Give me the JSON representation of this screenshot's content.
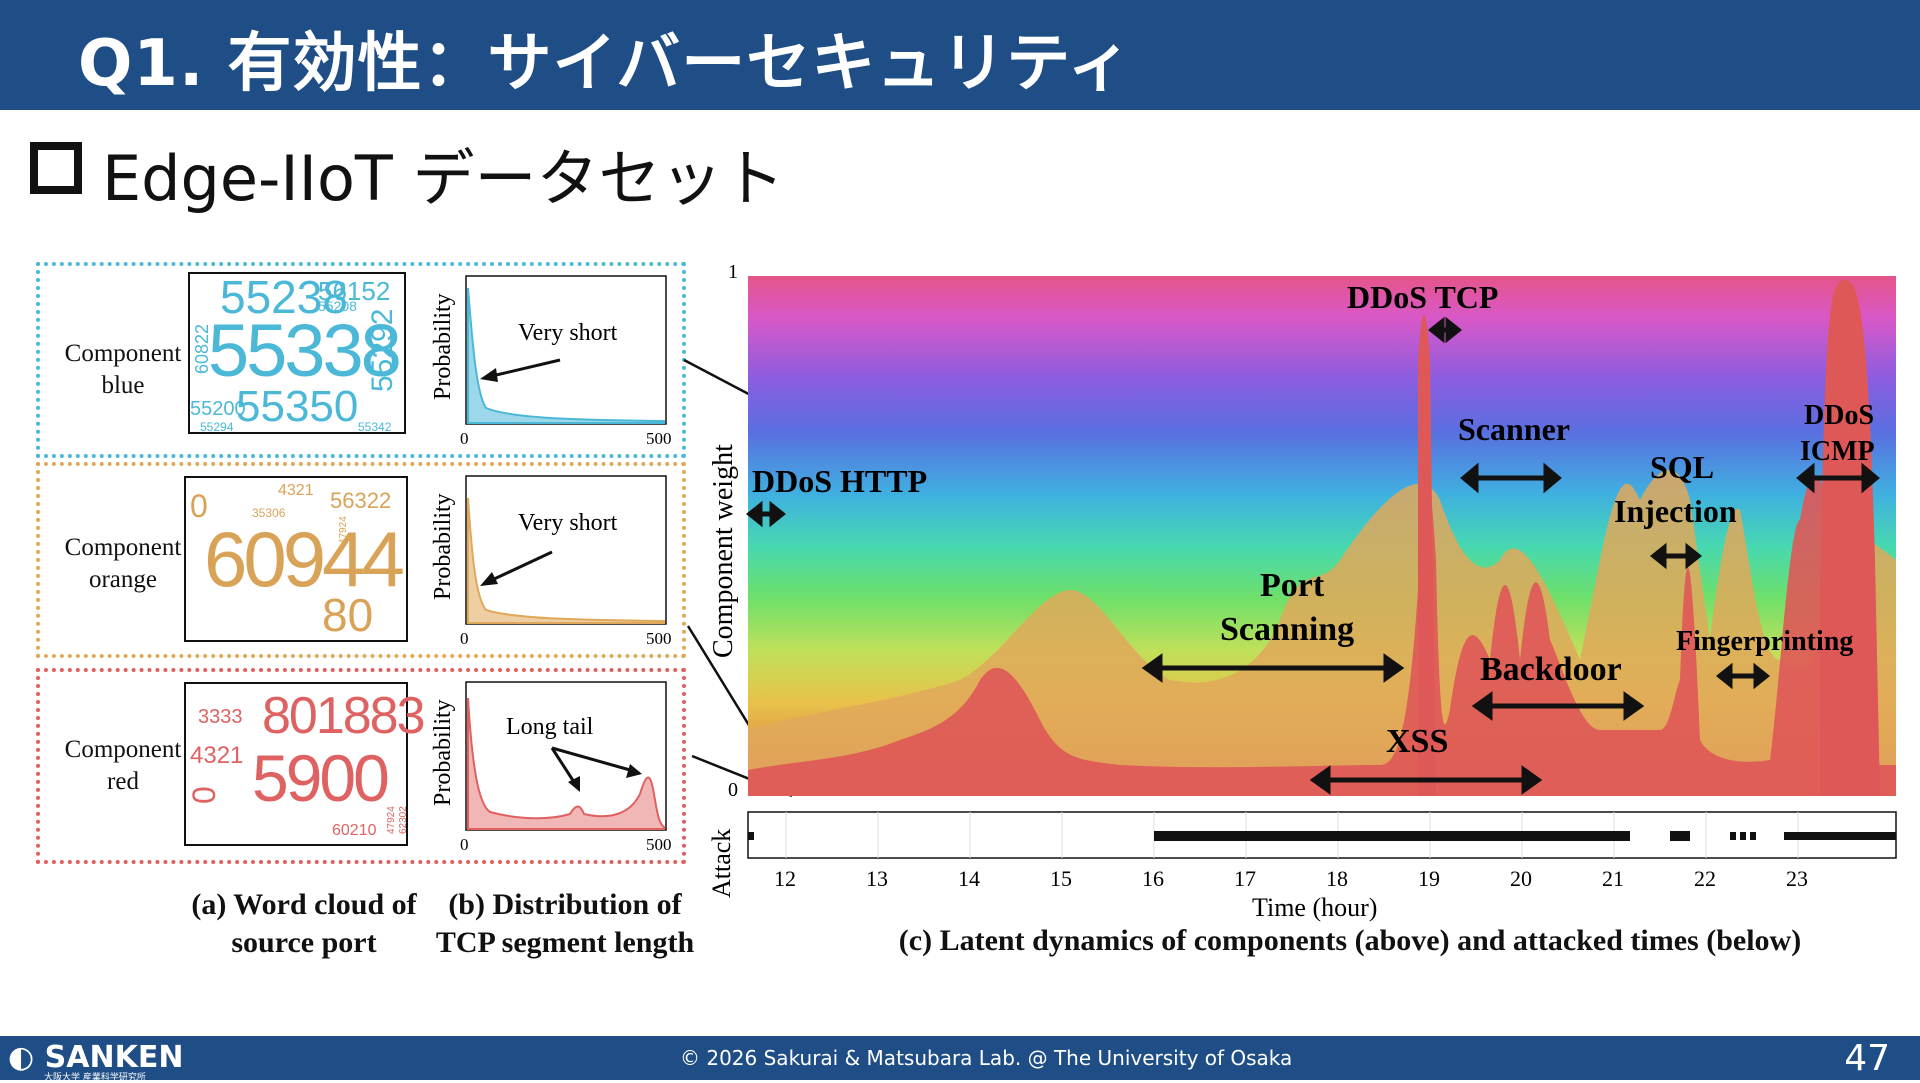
{
  "header": {
    "title": "Q1. 有効性：サイバーセキュリティ"
  },
  "bullet": {
    "text": "Edge-IIoT データセット"
  },
  "panels": [
    {
      "label_line1": "Component",
      "label_line2": "blue",
      "color": "#4bb8d8",
      "annotation": "Very short",
      "wordcloud": [
        "55338",
        "55350",
        "55238",
        "56152",
        "55292",
        "55200",
        "55208",
        "60822",
        "55294",
        "55342"
      ],
      "xticks": [
        "0",
        "500"
      ]
    },
    {
      "label_line1": "Component",
      "label_line2": "orange",
      "color": "#e0a85a",
      "annotation": "Very short",
      "wordcloud": [
        "60944",
        "80",
        "4321",
        "56322",
        "35306",
        "0",
        "47924"
      ],
      "xticks": [
        "0",
        "500"
      ]
    },
    {
      "label_line1": "Component",
      "label_line2": "red",
      "color": "#e06060",
      "annotation": "Long tail",
      "wordcloud": [
        "801883",
        "5900",
        "3333",
        "4321",
        "0",
        "60210",
        "47924",
        "62302"
      ],
      "xticks": [
        "0",
        "500"
      ]
    }
  ],
  "hist_ylabel": "Probability",
  "captions": {
    "a_line1": "(a) Word cloud of",
    "a_line2": "source port",
    "b_line1": "(b) Distribution of",
    "b_line2": "TCP segment length",
    "c": "(c) Latent dynamics of components (above) and attacked times (below)"
  },
  "stream": {
    "ylabel": "Component weight",
    "y_top": "1",
    "y_bottom": "0",
    "labels": {
      "ddos_http": "DDoS HTTP",
      "ddos_tcp": "DDoS TCP",
      "scanner": "Scanner",
      "sql_1": "SQL",
      "sql_2": "Injection",
      "ddos_icmp_1": "DDoS",
      "ddos_icmp_2": "ICMP",
      "port_1": "Port",
      "port_2": "Scanning",
      "backdoor": "Backdoor",
      "fingerprinting": "Fingerprinting",
      "xss": "XSS"
    }
  },
  "attack": {
    "ylabel": "Attack",
    "xlabel": "Time (hour)",
    "xticks": [
      "12",
      "13",
      "14",
      "15",
      "16",
      "17",
      "18",
      "19",
      "20",
      "21",
      "22",
      "23"
    ]
  },
  "footer": {
    "logo": "SANKEN",
    "logo_sub": "大阪大学 産業科学研究所",
    "copyright": "© 2026 Sakurai & Matsubara Lab. @ The University of Osaka",
    "page": "47"
  },
  "colors": {
    "header_bg": "#1f4e86",
    "blue": "#4bb8d8",
    "orange": "#e0a85a",
    "red": "#e06060"
  }
}
